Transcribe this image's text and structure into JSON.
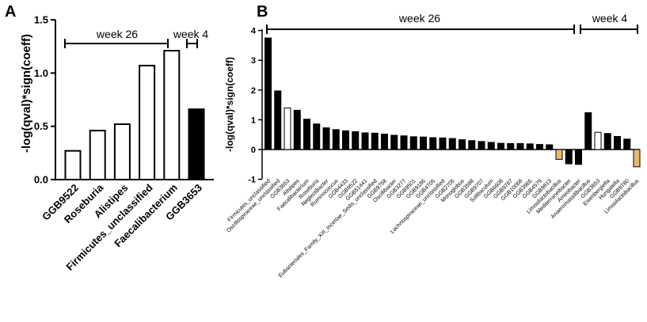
{
  "chart_data": [
    {
      "panel": "A",
      "type": "bar",
      "ylabel": "-log(qval)*sign(coeff)",
      "ylim": [
        0,
        1.5
      ],
      "yticks": [
        0.0,
        0.5,
        1.0,
        1.5
      ],
      "ytick_labels": [
        "0.0",
        "0.5",
        "1.0",
        "1.5"
      ],
      "categories": [
        "GGB9522",
        "Roseburia",
        "Alistipes",
        "Firmicutes_unclassified",
        "Faecalibacterium",
        "GGB3653"
      ],
      "values": [
        0.27,
        0.46,
        0.52,
        1.07,
        1.21,
        0.66
      ],
      "fills": [
        "#ffffff",
        "#ffffff",
        "#ffffff",
        "#ffffff",
        "#ffffff",
        "#000000"
      ],
      "period_labels": [
        "week 26",
        "week 4"
      ]
    },
    {
      "panel": "B",
      "type": "bar",
      "ylabel": "-log(qval)*sign(coeff)",
      "ylim": [
        -1,
        4
      ],
      "yticks": [
        -1,
        0,
        1,
        2,
        3,
        4
      ],
      "ytick_labels": [
        "-1",
        "0",
        "1",
        "2",
        "3",
        "4"
      ],
      "categories": [
        "Firmicutes_unclassified",
        "Oscillospiraceae_unclassified",
        "GGB3653",
        "Alistipes",
        "Faecalibacterium",
        "Roseburia",
        "Neglectibacter",
        "Ruminococcus",
        "GGB4433",
        "GGB9522",
        "GGB51441",
        "Eubacteriales_Family_XIII_Incertae_Sedis_unclassified",
        "GGB9758",
        "Oscillibacter",
        "GGB3277",
        "GGB9501",
        "GGB9186",
        "GGB4705",
        "Lachnospiraceae_unclassified",
        "GGB2705",
        "Monoglobus",
        "GGB3588",
        "GGB9707",
        "Solibaculum",
        "GGB6608",
        "GGB9787",
        "GGB10068",
        "GGB3965",
        "GGB4579",
        "GGB9813",
        "Limosilactobacillus",
        "Mediterraneibacter",
        "Ameobacter",
        "Anaeromassilibacillus",
        "GGB3653",
        "Eisenbergiella",
        "Hungatella",
        "GGB9780",
        "Limosilactobacillus"
      ],
      "values": [
        3.75,
        1.97,
        1.4,
        1.32,
        1.02,
        0.86,
        0.73,
        0.67,
        0.63,
        0.6,
        0.56,
        0.55,
        0.52,
        0.48,
        0.46,
        0.43,
        0.42,
        0.4,
        0.39,
        0.37,
        0.33,
        0.3,
        0.27,
        0.24,
        0.21,
        0.2,
        0.2,
        0.19,
        0.17,
        0.16,
        -0.33,
        -0.48,
        -0.5,
        1.24,
        0.58,
        0.54,
        0.44,
        0.35,
        -0.58
      ],
      "fills": [
        "#000000",
        "#000000",
        "#ffffff",
        "#000000",
        "#000000",
        "#000000",
        "#000000",
        "#000000",
        "#000000",
        "#000000",
        "#000000",
        "#000000",
        "#000000",
        "#000000",
        "#000000",
        "#000000",
        "#000000",
        "#000000",
        "#000000",
        "#000000",
        "#000000",
        "#000000",
        "#000000",
        "#000000",
        "#000000",
        "#000000",
        "#000000",
        "#000000",
        "#000000",
        "#000000",
        "#e8b870",
        "#000000",
        "#000000",
        "#000000",
        "#ffffff",
        "#000000",
        "#000000",
        "#000000",
        "#e8b870"
      ],
      "period_labels": [
        "week 26",
        "week 4"
      ]
    }
  ]
}
